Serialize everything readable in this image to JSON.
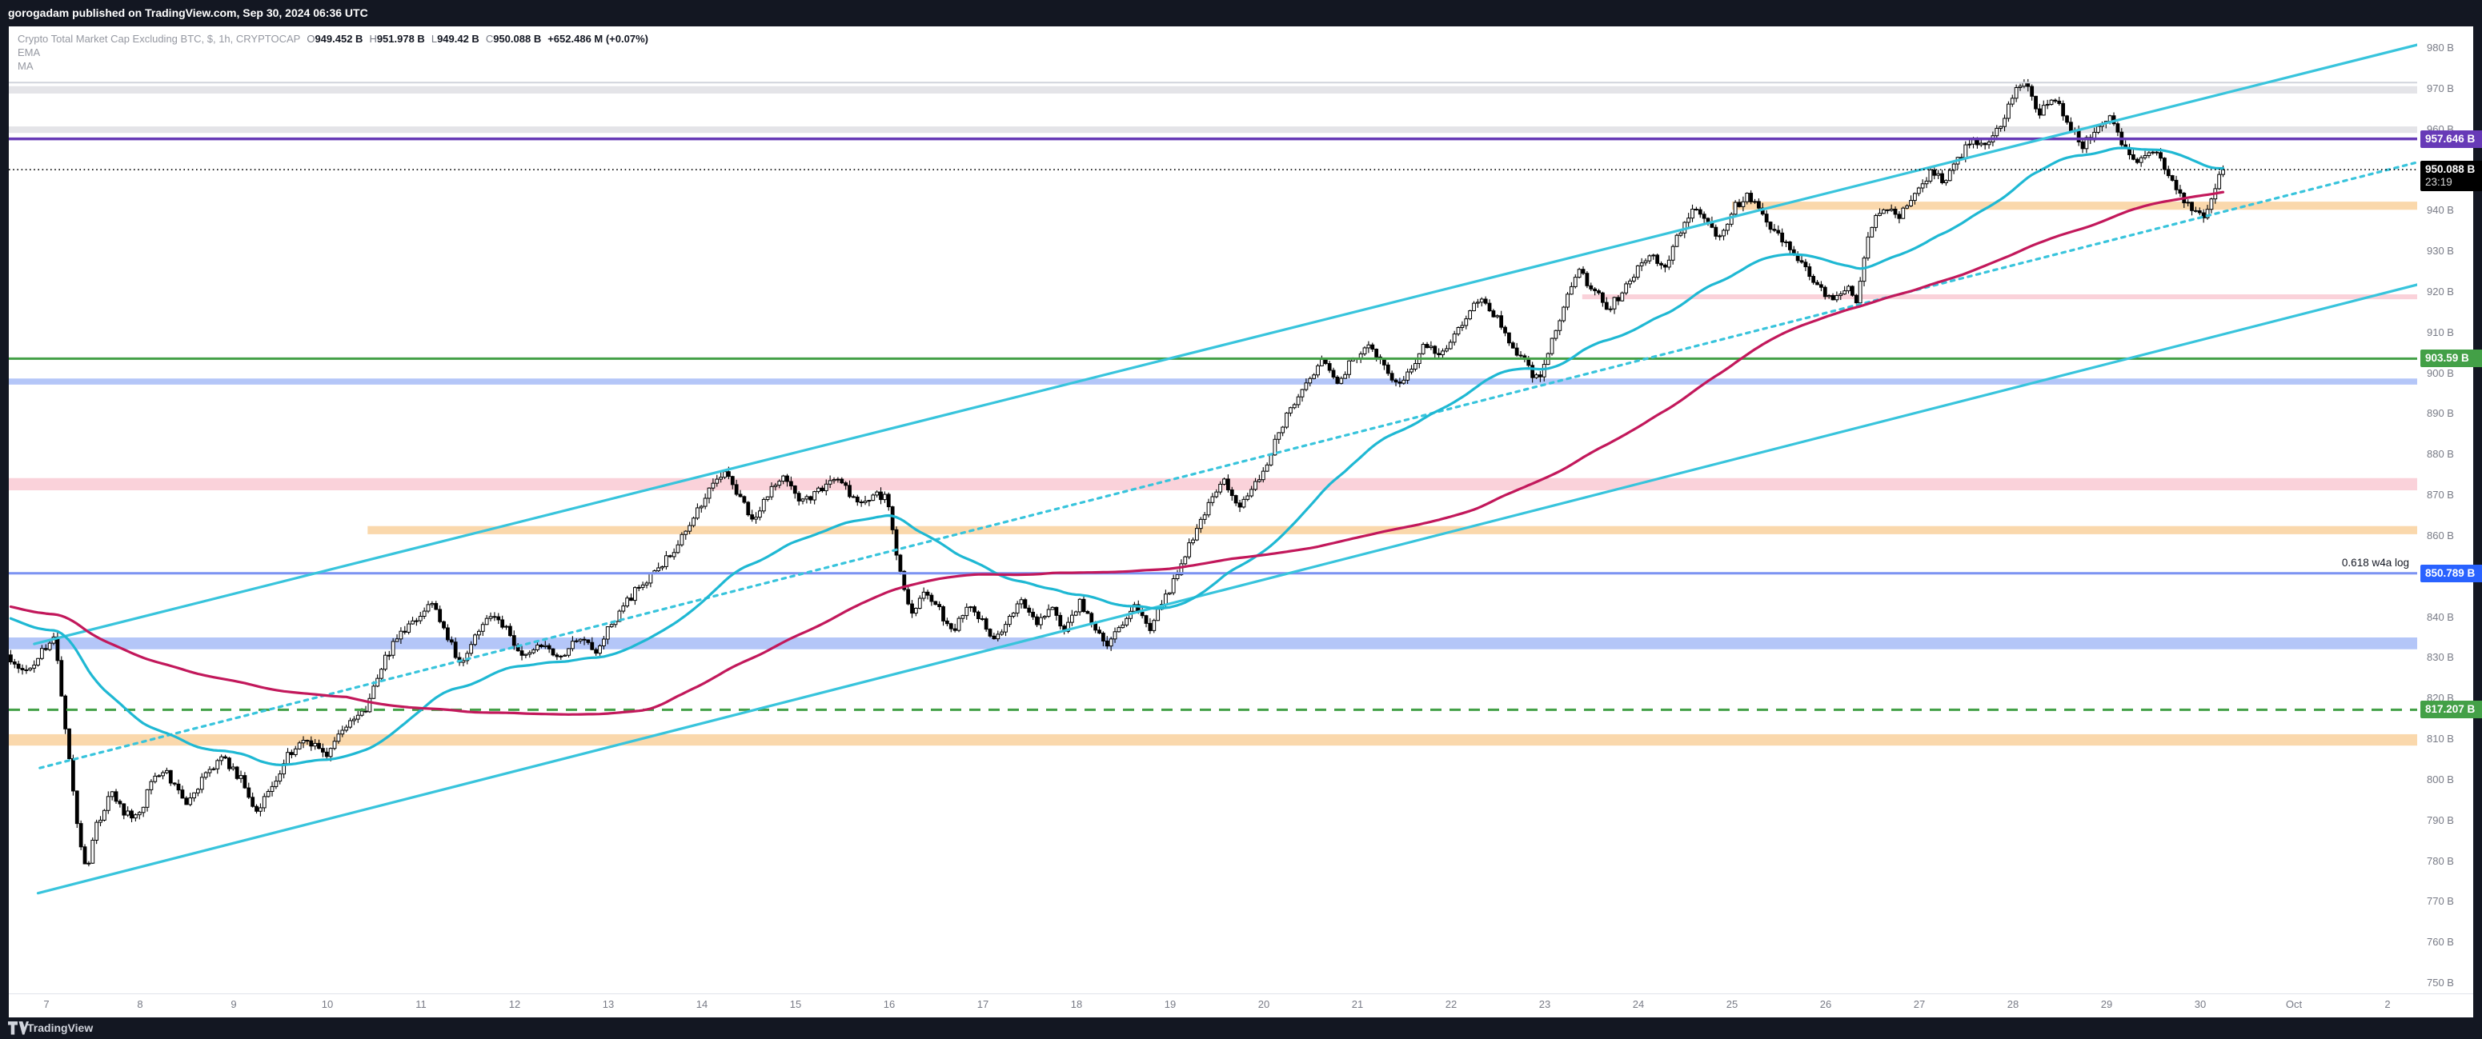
{
  "header": {
    "published_text": "gorogadam published on TradingView.com, Sep 30, 2024 06:36 UTC"
  },
  "footer": {
    "brand": "TradingView"
  },
  "legend": {
    "symbol_title": "Crypto Total Market Cap Excluding BTC, $, 1h, CRYPTOCAP",
    "ohlc": [
      {
        "k": "O",
        "v": "949.452 B"
      },
      {
        "k": "H",
        "v": "951.978 B"
      },
      {
        "k": "L",
        "v": "949.42 B"
      },
      {
        "k": "C",
        "v": "950.088 B"
      },
      {
        "k": "",
        "v": "+652.486 M (+0.07%)"
      }
    ],
    "indicators": [
      "EMA",
      "MA"
    ]
  },
  "colors": {
    "chrome_bg": "#131722",
    "plot_bg": "#ffffff",
    "text_muted": "#787B86",
    "text_dark": "#131722",
    "candle_outline": "#000000",
    "candle_up_fill": "#ffffff",
    "candle_down_fill": "#000000",
    "ema": "#1FB8D3",
    "ma": "#C2185B",
    "channel": "#38C4DC",
    "purple_level": "#673AB7",
    "green_level": "#43A047",
    "blue_level_line": "#7C93F2",
    "blue_chip": "#2962FF",
    "black_level": "#000000",
    "zone_gray": "#E4E4E8",
    "zone_gray_line": "#D1D4DC",
    "zone_pink": "#FAD2DA",
    "zone_orange": "#FAD8AC",
    "zone_blue": "#B4C6F8"
  },
  "chart_data": {
    "type": "candlestick",
    "title": "Crypto Total Market Cap Excluding BTC, $, 1h, CRYPTOCAP",
    "unit": "B (billions USD)",
    "ylim": [
      747,
      985
    ],
    "grid": "off",
    "y_axis_ticks": [
      {
        "price": 980,
        "label": "980 B"
      },
      {
        "price": 970,
        "label": "970 B"
      },
      {
        "price": 960,
        "label": "960 B"
      },
      {
        "price": 950,
        "label": "950 B"
      },
      {
        "price": 940,
        "label": "940 B"
      },
      {
        "price": 930,
        "label": "930 B"
      },
      {
        "price": 920,
        "label": "920 B"
      },
      {
        "price": 910,
        "label": "910 B"
      },
      {
        "price": 900,
        "label": "900 B"
      },
      {
        "price": 890,
        "label": "890 B"
      },
      {
        "price": 880,
        "label": "880 B"
      },
      {
        "price": 870,
        "label": "870 B"
      },
      {
        "price": 860,
        "label": "860 B"
      },
      {
        "price": 850,
        "label": "850 B"
      },
      {
        "price": 840,
        "label": "840 B"
      },
      {
        "price": 830,
        "label": "830 B"
      },
      {
        "price": 820,
        "label": "820 B"
      },
      {
        "price": 810,
        "label": "810 B"
      },
      {
        "price": 800,
        "label": "800 B"
      },
      {
        "price": 790,
        "label": "790 B"
      },
      {
        "price": 780,
        "label": "780 B"
      },
      {
        "price": 770,
        "label": "770 B"
      },
      {
        "price": 760,
        "label": "760 B"
      },
      {
        "price": 750,
        "label": "750 B"
      }
    ],
    "x_axis_ticks": [
      {
        "label": "7",
        "day": 7
      },
      {
        "label": "8",
        "day": 8
      },
      {
        "label": "9",
        "day": 9
      },
      {
        "label": "10",
        "day": 10
      },
      {
        "label": "11",
        "day": 11
      },
      {
        "label": "12",
        "day": 12
      },
      {
        "label": "13",
        "day": 13
      },
      {
        "label": "14",
        "day": 14
      },
      {
        "label": "15",
        "day": 15
      },
      {
        "label": "16",
        "day": 16
      },
      {
        "label": "17",
        "day": 17
      },
      {
        "label": "18",
        "day": 18
      },
      {
        "label": "19",
        "day": 19
      },
      {
        "label": "20",
        "day": 20
      },
      {
        "label": "21",
        "day": 21
      },
      {
        "label": "22",
        "day": 22
      },
      {
        "label": "23",
        "day": 23
      },
      {
        "label": "24",
        "day": 24
      },
      {
        "label": "25",
        "day": 25
      },
      {
        "label": "26",
        "day": 26
      },
      {
        "label": "27",
        "day": 27
      },
      {
        "label": "28",
        "day": 28
      },
      {
        "label": "29",
        "day": 29
      },
      {
        "label": "30",
        "day": 30
      },
      {
        "label": "Oct",
        "day": 31
      },
      {
        "label": "2",
        "day": 32
      }
    ],
    "zones": [
      {
        "p_high": 970.6,
        "p_low": 968.8,
        "start_day": null,
        "color_key": "zone_gray"
      },
      {
        "p_high": 960.7,
        "p_low": 959.1,
        "start_day": null,
        "color_key": "zone_gray"
      },
      {
        "p_high": 942.2,
        "p_low": 940.2,
        "start_day": 25.0,
        "color_key": "zone_orange"
      },
      {
        "p_high": 919.4,
        "p_low": 918.2,
        "start_day": 23.4,
        "color_key": "zone_pink"
      },
      {
        "p_high": 898.7,
        "p_low": 897.2,
        "start_day": null,
        "color_key": "zone_blue"
      },
      {
        "p_high": 874.2,
        "p_low": 871.2,
        "start_day": null,
        "color_key": "zone_pink"
      },
      {
        "p_high": 862.4,
        "p_low": 860.4,
        "start_day": 10.43,
        "color_key": "zone_orange"
      },
      {
        "p_high": 835.0,
        "p_low": 832.1,
        "start_day": null,
        "color_key": "zone_blue"
      },
      {
        "p_high": 811.2,
        "p_low": 808.4,
        "start_day": null,
        "color_key": "zone_orange"
      }
    ],
    "levels": [
      {
        "price": 971.5,
        "style": "solid",
        "width": 2,
        "color_key": "zone_gray_line"
      },
      {
        "price": 957.646,
        "style": "solid",
        "width": 3.5,
        "color_key": "purple_level"
      },
      {
        "price": 903.59,
        "style": "solid",
        "width": 3,
        "color_key": "green_level"
      },
      {
        "price": 850.789,
        "style": "solid",
        "width": 3,
        "color_key": "blue_level_line"
      },
      {
        "price": 817.207,
        "style": "dashed",
        "width": 3,
        "color_key": "green_level"
      },
      {
        "price": 950.088,
        "style": "dotted",
        "width": 1.6,
        "color_key": "black_level"
      }
    ],
    "price_chips": [
      {
        "price": 957.646,
        "label": "957.646 B",
        "sub": null,
        "bg_key": "purple_level"
      },
      {
        "price": 950.088,
        "label": "950.088 B",
        "sub": "23:19",
        "bg_key": "black_level"
      },
      {
        "price": 903.59,
        "label": "903.59 B",
        "sub": null,
        "bg_key": "green_level"
      },
      {
        "price": 850.789,
        "label": "850.789 B",
        "sub": null,
        "bg_key": "blue_chip"
      },
      {
        "price": 817.207,
        "label": "817.207 B",
        "sub": null,
        "bg_key": "green_level"
      }
    ],
    "annotation": {
      "text": "0.618  w4a log",
      "price": 850.789
    },
    "trendlines": [
      {
        "name": "channel-upper-solid",
        "style": "solid",
        "from": [
          6.87,
          833.4
        ],
        "to": [
          32.32,
          980.8
        ]
      },
      {
        "name": "channel-median-dotted",
        "style": "dotted",
        "from": [
          6.93,
          802.9
        ],
        "to": [
          32.32,
          951.9
        ]
      },
      {
        "name": "channel-lower-solid",
        "style": "solid",
        "from": [
          6.91,
          772.1
        ],
        "to": [
          32.32,
          921.8
        ]
      }
    ],
    "moving_averages": [
      {
        "name": "EMA",
        "period": 60,
        "color_key": "ema"
      },
      {
        "name": "MA",
        "period": 150,
        "color_key": "ma"
      }
    ],
    "last_bar": {
      "close": 950.088,
      "countdown": "23:19",
      "time_label": "Sep 30, 06:36 UTC"
    },
    "price_path_keypoints": [
      [
        4.0,
        848
      ],
      [
        4.6,
        852
      ],
      [
        5.2,
        845
      ],
      [
        5.7,
        839
      ],
      [
        6.1,
        835
      ],
      [
        6.4,
        832
      ],
      [
        6.6,
        831
      ],
      [
        6.8,
        826
      ],
      [
        7.0,
        832
      ],
      [
        7.1,
        836
      ],
      [
        7.2,
        818
      ],
      [
        7.35,
        790
      ],
      [
        7.45,
        777
      ],
      [
        7.55,
        788
      ],
      [
        7.7,
        797
      ],
      [
        7.85,
        792
      ],
      [
        8.0,
        790
      ],
      [
        8.15,
        800
      ],
      [
        8.3,
        802
      ],
      [
        8.5,
        794
      ],
      [
        8.7,
        800
      ],
      [
        8.9,
        806
      ],
      [
        9.1,
        800
      ],
      [
        9.25,
        791
      ],
      [
        9.4,
        797
      ],
      [
        9.6,
        806
      ],
      [
        9.8,
        810
      ],
      [
        10.0,
        806
      ],
      [
        10.2,
        812
      ],
      [
        10.45,
        818
      ],
      [
        10.6,
        828
      ],
      [
        10.8,
        836
      ],
      [
        11.0,
        840
      ],
      [
        11.15,
        843
      ],
      [
        11.3,
        836
      ],
      [
        11.45,
        827
      ],
      [
        11.6,
        836
      ],
      [
        11.75,
        841
      ],
      [
        11.9,
        838
      ],
      [
        12.1,
        830
      ],
      [
        12.3,
        834
      ],
      [
        12.5,
        829
      ],
      [
        12.7,
        835
      ],
      [
        12.9,
        832
      ],
      [
        13.1,
        840
      ],
      [
        13.3,
        846
      ],
      [
        13.5,
        851
      ],
      [
        13.7,
        856
      ],
      [
        13.9,
        862
      ],
      [
        14.05,
        870
      ],
      [
        14.25,
        876
      ],
      [
        14.45,
        868
      ],
      [
        14.6,
        864
      ],
      [
        14.75,
        871
      ],
      [
        14.9,
        874
      ],
      [
        15.1,
        868
      ],
      [
        15.3,
        872
      ],
      [
        15.5,
        874
      ],
      [
        15.7,
        867
      ],
      [
        15.85,
        870
      ],
      [
        16.0,
        869
      ],
      [
        16.1,
        856
      ],
      [
        16.25,
        840
      ],
      [
        16.4,
        846
      ],
      [
        16.55,
        842
      ],
      [
        16.7,
        836
      ],
      [
        16.85,
        843
      ],
      [
        17.0,
        840
      ],
      [
        17.15,
        834
      ],
      [
        17.3,
        840
      ],
      [
        17.45,
        844
      ],
      [
        17.6,
        838
      ],
      [
        17.75,
        842
      ],
      [
        17.9,
        836
      ],
      [
        18.05,
        844
      ],
      [
        18.2,
        839
      ],
      [
        18.35,
        832
      ],
      [
        18.5,
        838
      ],
      [
        18.65,
        843
      ],
      [
        18.8,
        837
      ],
      [
        19.0,
        846
      ],
      [
        19.15,
        853
      ],
      [
        19.3,
        862
      ],
      [
        19.45,
        868
      ],
      [
        19.6,
        873
      ],
      [
        19.75,
        867
      ],
      [
        19.9,
        871
      ],
      [
        20.05,
        878
      ],
      [
        20.2,
        886
      ],
      [
        20.35,
        893
      ],
      [
        20.5,
        898
      ],
      [
        20.65,
        903
      ],
      [
        20.8,
        898
      ],
      [
        21.0,
        904
      ],
      [
        21.15,
        907
      ],
      [
        21.3,
        902
      ],
      [
        21.45,
        897
      ],
      [
        21.6,
        902
      ],
      [
        21.75,
        907
      ],
      [
        21.9,
        904
      ],
      [
        22.05,
        909
      ],
      [
        22.2,
        914
      ],
      [
        22.35,
        919
      ],
      [
        22.5,
        914
      ],
      [
        22.65,
        908
      ],
      [
        22.8,
        903
      ],
      [
        22.95,
        898
      ],
      [
        23.1,
        908
      ],
      [
        23.25,
        918
      ],
      [
        23.4,
        925
      ],
      [
        23.55,
        920
      ],
      [
        23.7,
        916
      ],
      [
        23.85,
        920
      ],
      [
        24.0,
        925
      ],
      [
        24.15,
        929
      ],
      [
        24.3,
        926
      ],
      [
        24.45,
        934
      ],
      [
        24.6,
        941
      ],
      [
        24.75,
        937
      ],
      [
        24.9,
        933
      ],
      [
        25.05,
        941
      ],
      [
        25.2,
        944
      ],
      [
        25.35,
        939
      ],
      [
        25.5,
        934
      ],
      [
        25.65,
        930
      ],
      [
        25.8,
        926
      ],
      [
        25.95,
        921
      ],
      [
        26.1,
        918
      ],
      [
        26.25,
        922
      ],
      [
        26.35,
        917
      ],
      [
        26.5,
        936
      ],
      [
        26.65,
        941
      ],
      [
        26.8,
        938
      ],
      [
        27.0,
        945
      ],
      [
        27.15,
        950
      ],
      [
        27.3,
        947
      ],
      [
        27.45,
        953
      ],
      [
        27.6,
        958
      ],
      [
        27.75,
        955
      ],
      [
        27.9,
        962
      ],
      [
        28.05,
        969
      ],
      [
        28.15,
        972
      ],
      [
        28.3,
        964
      ],
      [
        28.45,
        968
      ],
      [
        28.6,
        962
      ],
      [
        28.75,
        956
      ],
      [
        28.9,
        959
      ],
      [
        29.05,
        963
      ],
      [
        29.2,
        956
      ],
      [
        29.35,
        951
      ],
      [
        29.5,
        956
      ],
      [
        29.65,
        950
      ],
      [
        29.8,
        944
      ],
      [
        29.95,
        940
      ],
      [
        30.05,
        938
      ],
      [
        30.15,
        944
      ],
      [
        30.27,
        950.088
      ]
    ]
  }
}
